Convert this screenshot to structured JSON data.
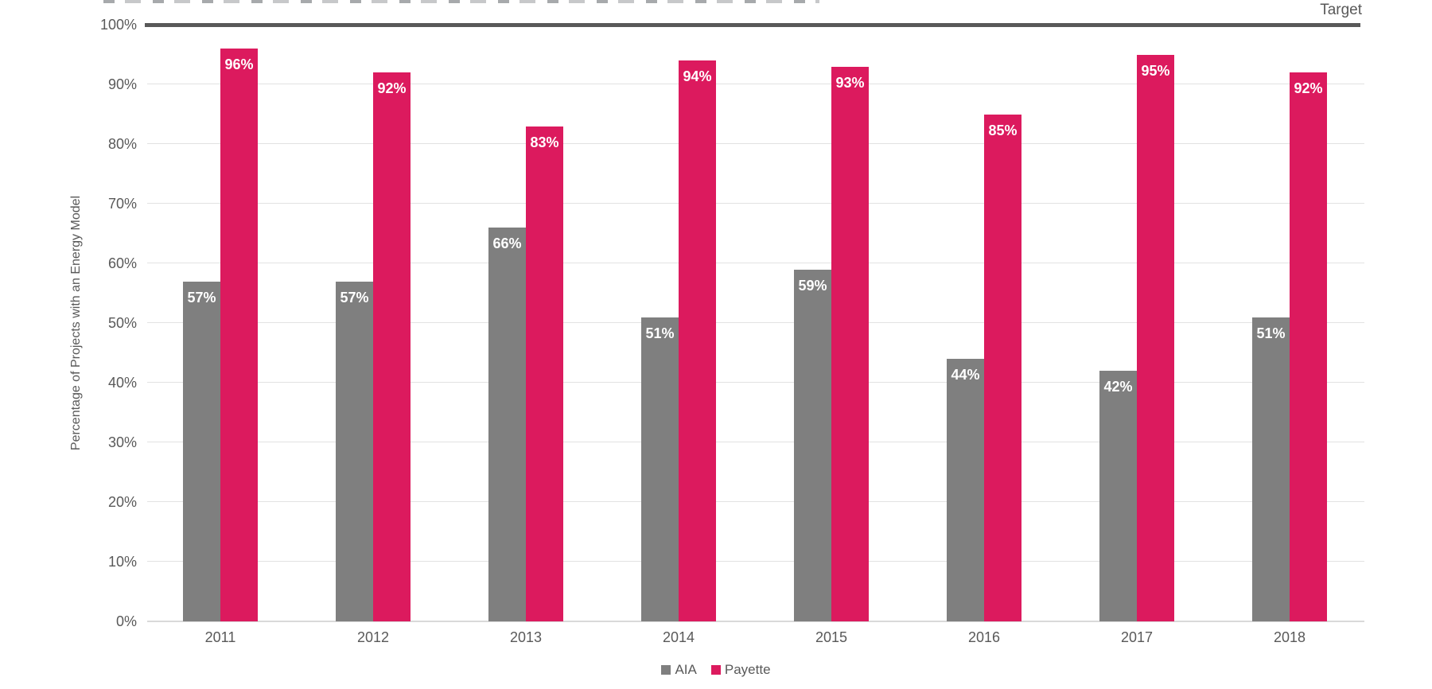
{
  "colors": {
    "background": "#FFFFFF",
    "aia": "#7F7F7F",
    "payette": "#DC1A5E",
    "target_line": "#595959",
    "gridline": "#E2E2E2",
    "baseline": "#D9D9D9",
    "axis_text": "#595959",
    "value_label_text": "#FFFFFF"
  },
  "chart_data": {
    "type": "bar",
    "categories": [
      "2011",
      "2012",
      "2013",
      "2014",
      "2015",
      "2016",
      "2017",
      "2018"
    ],
    "series": [
      {
        "name": "AIA",
        "color": "#7F7F7F",
        "values": [
          57,
          57,
          66,
          51,
          59,
          44,
          42,
          51
        ]
      },
      {
        "name": "Payette",
        "color": "#DC1A5E",
        "values": [
          96,
          92,
          83,
          94,
          93,
          85,
          95,
          92
        ]
      }
    ],
    "value_label_suffix": "%",
    "value_labels_inside_bar_top": true,
    "ylabel": "Percentage of Projects with an Energy Model",
    "ylim": [
      0,
      100
    ],
    "ytick_step": 10,
    "ytick_suffix": "%",
    "grid": true,
    "legend_position": "bottom-center",
    "target": {
      "label": "Target",
      "value": 100
    }
  }
}
